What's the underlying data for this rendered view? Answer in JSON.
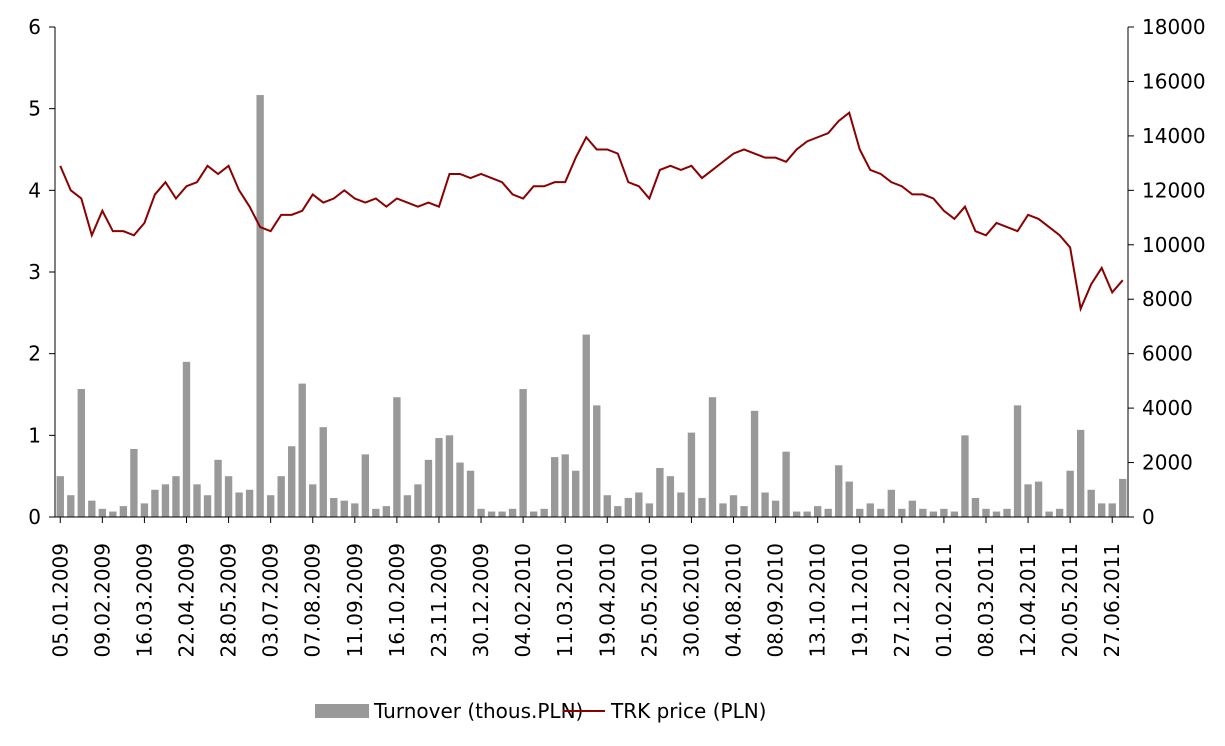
{
  "chart_data": {
    "type": "combo",
    "categories": [
      "05.01.2009",
      null,
      null,
      null,
      "09.02.2009",
      null,
      null,
      null,
      "16.03.2009",
      null,
      null,
      null,
      "22.04.2009",
      null,
      null,
      null,
      "28.05.2009",
      null,
      null,
      null,
      "03.07.2009",
      null,
      null,
      null,
      "07.08.2009",
      null,
      null,
      null,
      "11.09.2009",
      null,
      null,
      null,
      "16.10.2009",
      null,
      null,
      null,
      "23.11.2009",
      null,
      null,
      null,
      "30.12.2009",
      null,
      null,
      null,
      "04.02.2010",
      null,
      null,
      null,
      "11.03.2010",
      null,
      null,
      null,
      "19.04.2010",
      null,
      null,
      null,
      "25.05.2010",
      null,
      null,
      null,
      "30.06.2010",
      null,
      null,
      null,
      "04.08.2010",
      null,
      null,
      null,
      "08.09.2010",
      null,
      null,
      null,
      "13.10.2010",
      null,
      null,
      null,
      "19.11.2010",
      null,
      null,
      null,
      "27.12.2010",
      null,
      null,
      null,
      "01.02.2011",
      null,
      null,
      null,
      "08.03.2011",
      null,
      null,
      null,
      "12.04.2011",
      null,
      null,
      null,
      "20.05.2011",
      null,
      null,
      null,
      "27.06.2011",
      null
    ],
    "series": [
      {
        "name": "Turnover (thous.PLN)",
        "type": "bar",
        "axis": "y2",
        "color": "#999999",
        "values": [
          1500,
          800,
          4700,
          600,
          300,
          200,
          400,
          2500,
          500,
          1000,
          1200,
          1500,
          5700,
          1200,
          800,
          2100,
          1500,
          900,
          1000,
          15500,
          800,
          1500,
          2600,
          4900,
          1200,
          3300,
          700,
          600,
          500,
          2300,
          300,
          400,
          4400,
          800,
          1200,
          2100,
          2900,
          3000,
          2000,
          1700,
          300,
          200,
          200,
          300,
          4700,
          200,
          300,
          2200,
          2300,
          1700,
          6700,
          4100,
          800,
          400,
          700,
          900,
          500,
          1800,
          1500,
          900,
          3100,
          700,
          4400,
          500,
          800,
          400,
          3900,
          900,
          600,
          2400,
          200,
          200,
          400,
          300,
          1900,
          1300,
          300,
          500,
          300,
          1000,
          300,
          600,
          300,
          200,
          300,
          200,
          3000,
          700,
          300,
          200,
          300,
          4100,
          1200,
          1300,
          200,
          300,
          1700,
          3200,
          1000,
          500,
          500,
          1400
        ]
      },
      {
        "name": "TRK price (PLN)",
        "type": "line",
        "color": "#8b0000",
        "values": [
          4.3,
          4.0,
          3.9,
          3.45,
          3.75,
          3.5,
          3.5,
          3.45,
          3.6,
          3.95,
          4.1,
          3.9,
          4.05,
          4.1,
          4.3,
          4.2,
          4.3,
          4.0,
          3.8,
          3.55,
          3.5,
          3.7,
          3.7,
          3.75,
          3.95,
          3.85,
          3.9,
          4.0,
          3.9,
          3.85,
          3.9,
          3.8,
          3.9,
          3.85,
          3.8,
          3.85,
          3.8,
          4.2,
          4.2,
          4.15,
          4.2,
          4.15,
          4.1,
          3.95,
          3.9,
          4.05,
          4.05,
          4.1,
          4.1,
          4.4,
          4.65,
          4.5,
          4.5,
          4.45,
          4.1,
          4.05,
          3.9,
          4.25,
          4.3,
          4.25,
          4.3,
          4.15,
          4.25,
          4.35,
          4.45,
          4.5,
          4.45,
          4.4,
          4.4,
          4.35,
          4.5,
          4.6,
          4.65,
          4.7,
          4.85,
          4.95,
          4.5,
          4.25,
          4.2,
          4.1,
          4.05,
          3.95,
          3.95,
          3.9,
          3.75,
          3.65,
          3.8,
          3.5,
          3.45,
          3.6,
          3.55,
          3.5,
          3.7,
          3.65,
          3.55,
          3.45,
          3.3,
          2.55,
          2.85,
          3.05,
          2.75,
          2.9
        ]
      }
    ],
    "ylim": [
      0,
      6
    ],
    "yticks": [
      0,
      1,
      2,
      3,
      4,
      5,
      6
    ],
    "y2lim": [
      0,
      18000
    ],
    "y2ticks": [
      0,
      2000,
      4000,
      6000,
      8000,
      10000,
      12000,
      14000,
      16000,
      18000
    ]
  }
}
